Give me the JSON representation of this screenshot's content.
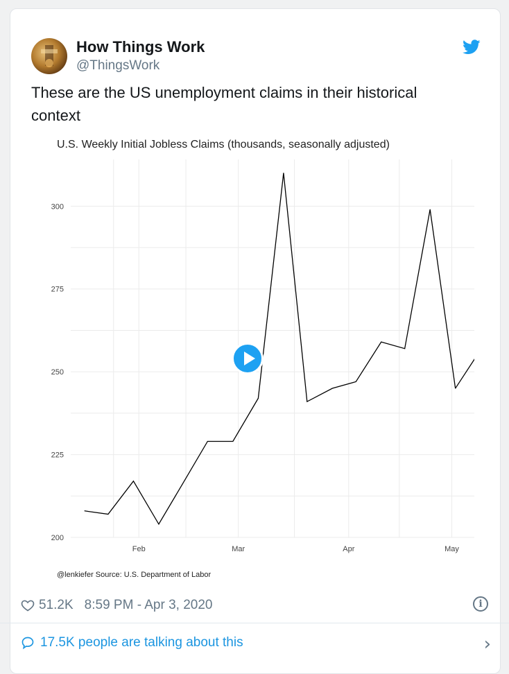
{
  "author": {
    "name": "How Things Work",
    "handle": "@ThingsWork"
  },
  "tweet": {
    "text": "These are the US unemployment claims in their historical context"
  },
  "chart_data": {
    "type": "line",
    "title": "U.S. Weekly Initial Jobless Claims (thousands, seasonally adjusted)",
    "xlabel": "",
    "ylabel": "",
    "ylim": [
      200,
      312
    ],
    "yticks": [
      200,
      225,
      250,
      275,
      300
    ],
    "xticks": [
      {
        "label": "Feb",
        "x": 0.15
      },
      {
        "label": "Mar",
        "x": 0.425
      },
      {
        "label": "Apr",
        "x": 0.73
      },
      {
        "label": "May",
        "x": 1.015
      }
    ],
    "grid": true,
    "series": [
      {
        "color": "#000000",
        "x": [
          0.0,
          0.065,
          0.135,
          0.205,
          0.27,
          0.34,
          0.41,
          0.48,
          0.55,
          0.615,
          0.685,
          0.75,
          0.82,
          0.885,
          0.955,
          1.025
        ],
        "values": [
          208,
          207,
          217,
          204,
          216,
          229,
          229,
          242,
          310,
          241,
          245,
          247,
          259,
          257,
          299,
          245
        ]
      }
    ],
    "last_point": {
      "x": 1.085,
      "value": 255,
      "color": "#e0302c"
    },
    "source": "@lenkiefer Source: U.S. Department of Labor"
  },
  "footer": {
    "likes": "51.2K",
    "timestamp": "8:59 PM - Apr 3, 2020",
    "info_glyph": "i"
  },
  "conversation": {
    "label": "17.5K people are talking about this",
    "chevron": "›"
  },
  "colors": {
    "twitter_blue": "#1da1f2",
    "link_blue": "#1b95e0",
    "muted": "#657786"
  }
}
